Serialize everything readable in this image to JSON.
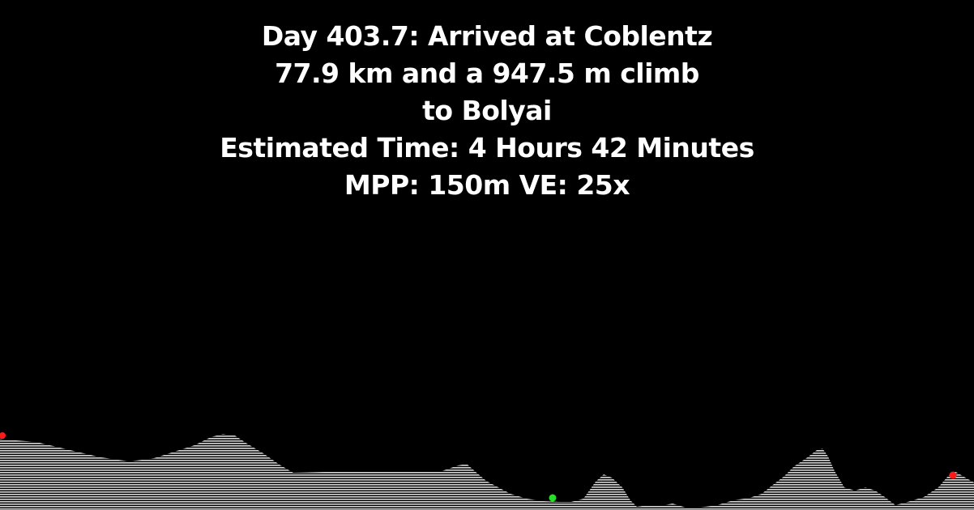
{
  "header": {
    "line1": "Day 403.7: Arrived at Coblentz",
    "line2": "77.9 km and a 947.5 m climb",
    "line3": "to Bolyai",
    "line4": "Estimated Time: 4 Hours 42 Minutes",
    "line5": "MPP: 150m VE: 25x"
  },
  "colors": {
    "background": "#000000",
    "text": "#ffffff",
    "terrain": "#d8d8d8",
    "marker_start": "#ff1a1a",
    "marker_end": "#ff1a1a",
    "marker_current": "#22e022"
  },
  "markers": [
    {
      "name": "start",
      "color": "#ff1a1a"
    },
    {
      "name": "current",
      "color": "#22e022"
    },
    {
      "name": "end",
      "color": "#ff1a1a"
    }
  ]
}
